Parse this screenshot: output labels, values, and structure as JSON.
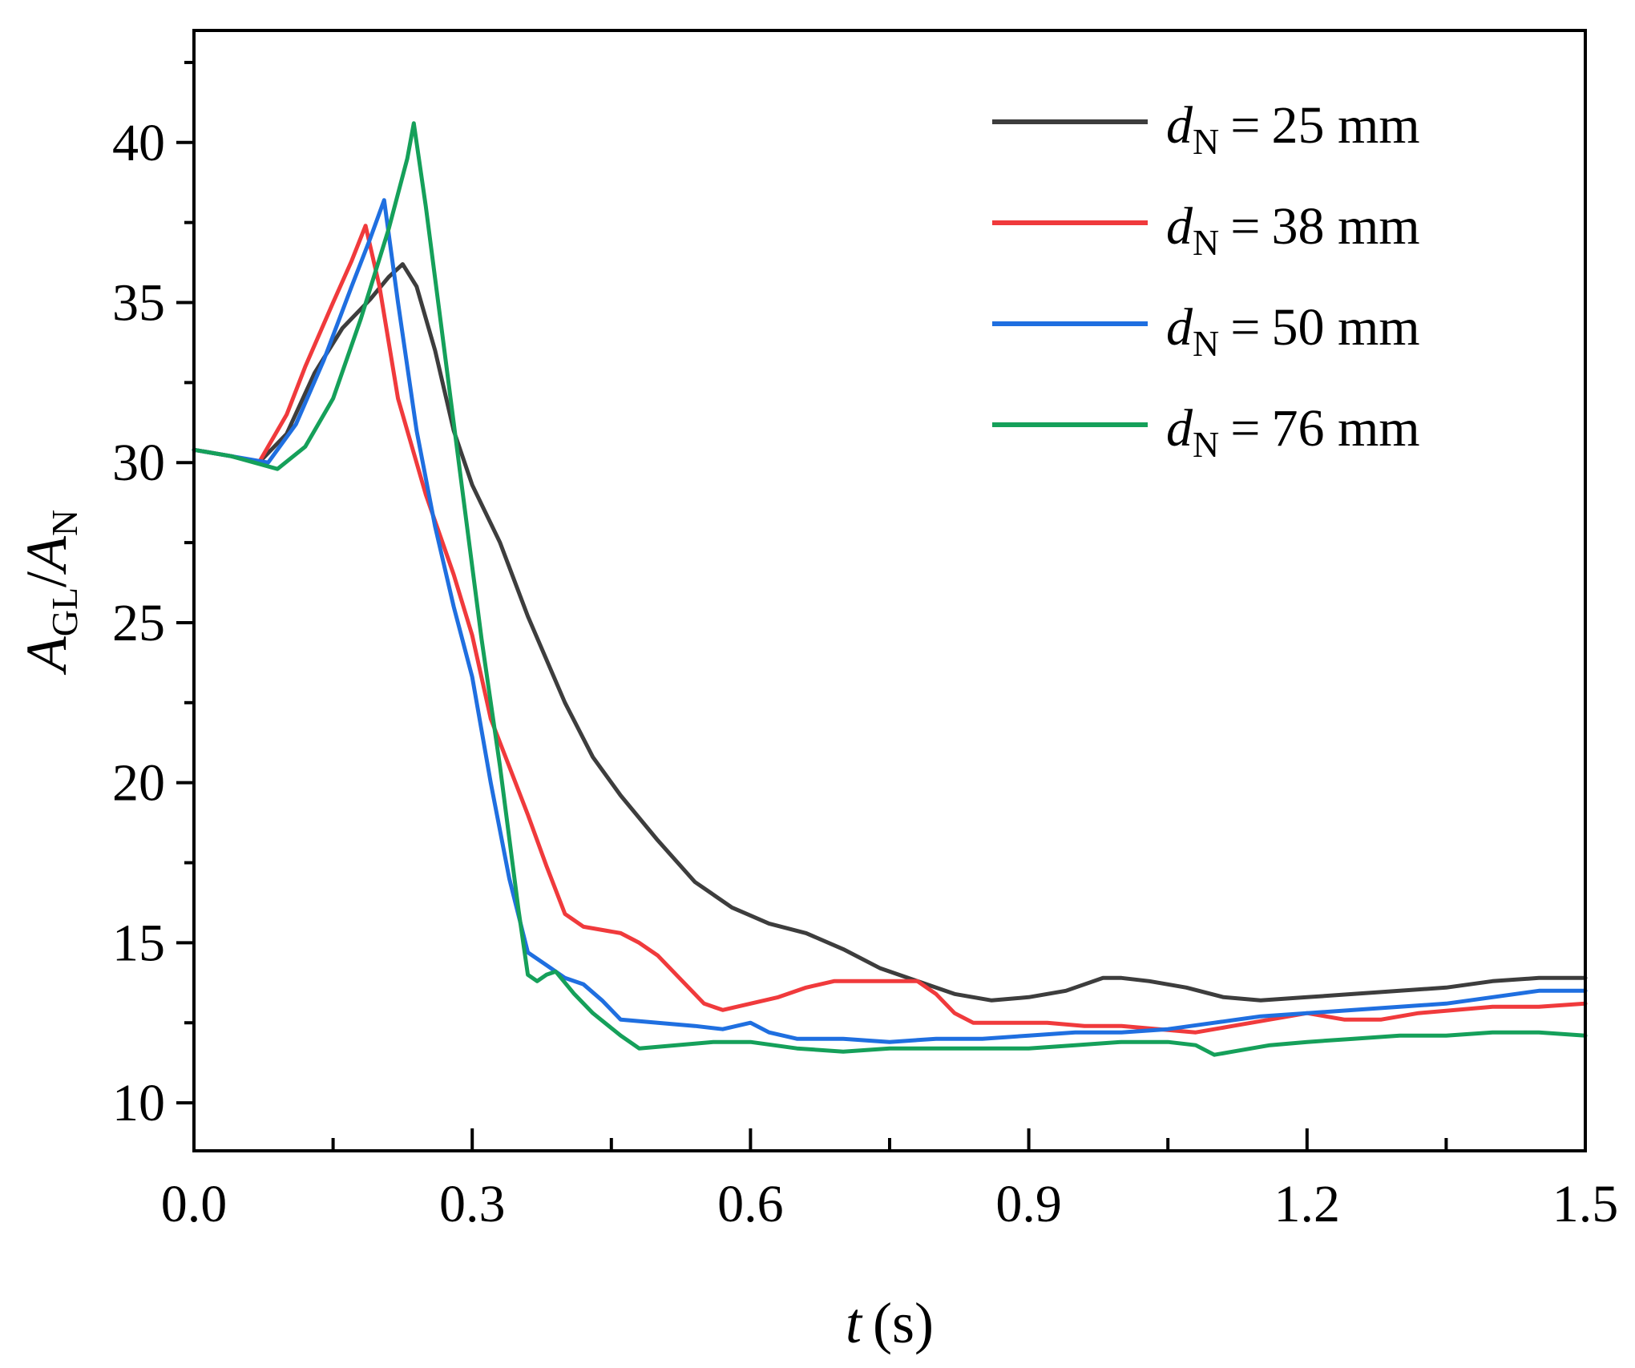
{
  "chart_data": {
    "type": "line",
    "title": "",
    "xlabel": {
      "var": "t",
      "unit": "(s)"
    },
    "ylabel": {
      "num_var": "A",
      "num_sub": "GL",
      "sep": "/",
      "den_var": "A",
      "den_sub": "N"
    },
    "xlim": [
      0,
      1.5
    ],
    "ylim": [
      8.5,
      43.5
    ],
    "x_ticks": [
      {
        "value": 0.0,
        "label": "0.0"
      },
      {
        "value": 0.3,
        "label": "0.3"
      },
      {
        "value": 0.6,
        "label": "0.6"
      },
      {
        "value": 0.9,
        "label": "0.9"
      },
      {
        "value": 1.2,
        "label": "1.2"
      },
      {
        "value": 1.5,
        "label": "1.5"
      }
    ],
    "x_minor_ticks": [
      0.15,
      0.45,
      0.75,
      1.05,
      1.35
    ],
    "y_ticks": [
      {
        "value": 10,
        "label": "10"
      },
      {
        "value": 15,
        "label": "15"
      },
      {
        "value": 20,
        "label": "20"
      },
      {
        "value": 25,
        "label": "25"
      },
      {
        "value": 30,
        "label": "30"
      },
      {
        "value": 35,
        "label": "35"
      },
      {
        "value": 40,
        "label": "40"
      }
    ],
    "y_minor_ticks": [
      12.5,
      17.5,
      22.5,
      27.5,
      32.5,
      37.5,
      42.5
    ],
    "grid": false,
    "legend_position": "top-right",
    "series": [
      {
        "name": "25 mm",
        "legend_var": "d",
        "legend_sub": "N",
        "legend_eq": "=",
        "legend_value": "25 mm",
        "color": "#3d3d3d",
        "points": [
          [
            0,
            30.4
          ],
          [
            0.04,
            30.2
          ],
          [
            0.07,
            30.0
          ],
          [
            0.1,
            30.9
          ],
          [
            0.13,
            32.8
          ],
          [
            0.16,
            34.2
          ],
          [
            0.19,
            35.1
          ],
          [
            0.21,
            35.8
          ],
          [
            0.225,
            36.2
          ],
          [
            0.24,
            35.5
          ],
          [
            0.26,
            33.5
          ],
          [
            0.28,
            31.0
          ],
          [
            0.3,
            29.3
          ],
          [
            0.33,
            27.5
          ],
          [
            0.36,
            25.2
          ],
          [
            0.4,
            22.5
          ],
          [
            0.43,
            20.8
          ],
          [
            0.46,
            19.6
          ],
          [
            0.5,
            18.2
          ],
          [
            0.54,
            16.9
          ],
          [
            0.58,
            16.1
          ],
          [
            0.62,
            15.6
          ],
          [
            0.66,
            15.3
          ],
          [
            0.7,
            14.8
          ],
          [
            0.74,
            14.2
          ],
          [
            0.78,
            13.8
          ],
          [
            0.82,
            13.4
          ],
          [
            0.86,
            13.2
          ],
          [
            0.9,
            13.3
          ],
          [
            0.94,
            13.5
          ],
          [
            0.96,
            13.7
          ],
          [
            0.98,
            13.9
          ],
          [
            1.0,
            13.9
          ],
          [
            1.03,
            13.8
          ],
          [
            1.07,
            13.6
          ],
          [
            1.11,
            13.3
          ],
          [
            1.15,
            13.2
          ],
          [
            1.2,
            13.3
          ],
          [
            1.25,
            13.4
          ],
          [
            1.3,
            13.5
          ],
          [
            1.35,
            13.6
          ],
          [
            1.4,
            13.8
          ],
          [
            1.45,
            13.9
          ],
          [
            1.5,
            13.9
          ]
        ]
      },
      {
        "name": "38 mm",
        "legend_var": "d",
        "legend_sub": "N",
        "legend_eq": "=",
        "legend_value": "38 mm",
        "color": "#f03a3c",
        "points": [
          [
            0,
            30.4
          ],
          [
            0.04,
            30.2
          ],
          [
            0.07,
            30.0
          ],
          [
            0.1,
            31.5
          ],
          [
            0.12,
            33.0
          ],
          [
            0.15,
            35.0
          ],
          [
            0.17,
            36.3
          ],
          [
            0.185,
            37.4
          ],
          [
            0.2,
            35.5
          ],
          [
            0.22,
            32.0
          ],
          [
            0.25,
            29.0
          ],
          [
            0.28,
            26.5
          ],
          [
            0.3,
            24.6
          ],
          [
            0.32,
            22.0
          ],
          [
            0.34,
            20.5
          ],
          [
            0.36,
            19.0
          ],
          [
            0.38,
            17.4
          ],
          [
            0.4,
            15.9
          ],
          [
            0.42,
            15.5
          ],
          [
            0.44,
            15.4
          ],
          [
            0.46,
            15.3
          ],
          [
            0.48,
            15.0
          ],
          [
            0.5,
            14.6
          ],
          [
            0.52,
            14.0
          ],
          [
            0.55,
            13.1
          ],
          [
            0.57,
            12.9
          ],
          [
            0.6,
            13.1
          ],
          [
            0.63,
            13.3
          ],
          [
            0.66,
            13.6
          ],
          [
            0.69,
            13.8
          ],
          [
            0.72,
            13.8
          ],
          [
            0.75,
            13.8
          ],
          [
            0.78,
            13.8
          ],
          [
            0.8,
            13.4
          ],
          [
            0.82,
            12.8
          ],
          [
            0.84,
            12.5
          ],
          [
            0.88,
            12.5
          ],
          [
            0.92,
            12.5
          ],
          [
            0.96,
            12.4
          ],
          [
            1.0,
            12.4
          ],
          [
            1.04,
            12.3
          ],
          [
            1.08,
            12.2
          ],
          [
            1.12,
            12.4
          ],
          [
            1.16,
            12.6
          ],
          [
            1.2,
            12.8
          ],
          [
            1.24,
            12.6
          ],
          [
            1.28,
            12.6
          ],
          [
            1.32,
            12.8
          ],
          [
            1.36,
            12.9
          ],
          [
            1.4,
            13.0
          ],
          [
            1.45,
            13.0
          ],
          [
            1.5,
            13.1
          ]
        ]
      },
      {
        "name": "50 mm",
        "legend_var": "d",
        "legend_sub": "N",
        "legend_eq": "=",
        "legend_value": "50 mm",
        "color": "#1f6fe0",
        "points": [
          [
            0,
            30.4
          ],
          [
            0.04,
            30.2
          ],
          [
            0.08,
            30.0
          ],
          [
            0.11,
            31.2
          ],
          [
            0.14,
            33.2
          ],
          [
            0.17,
            35.5
          ],
          [
            0.19,
            37.0
          ],
          [
            0.205,
            38.2
          ],
          [
            0.22,
            35.0
          ],
          [
            0.24,
            31.0
          ],
          [
            0.26,
            28.0
          ],
          [
            0.28,
            25.5
          ],
          [
            0.3,
            23.3
          ],
          [
            0.32,
            20.0
          ],
          [
            0.34,
            17.0
          ],
          [
            0.36,
            14.7
          ],
          [
            0.38,
            14.3
          ],
          [
            0.4,
            13.9
          ],
          [
            0.42,
            13.7
          ],
          [
            0.44,
            13.2
          ],
          [
            0.46,
            12.6
          ],
          [
            0.5,
            12.5
          ],
          [
            0.54,
            12.4
          ],
          [
            0.57,
            12.3
          ],
          [
            0.6,
            12.5
          ],
          [
            0.62,
            12.2
          ],
          [
            0.65,
            12.0
          ],
          [
            0.7,
            12.0
          ],
          [
            0.75,
            11.9
          ],
          [
            0.8,
            12.0
          ],
          [
            0.85,
            12.0
          ],
          [
            0.9,
            12.1
          ],
          [
            0.95,
            12.2
          ],
          [
            1.0,
            12.2
          ],
          [
            1.05,
            12.3
          ],
          [
            1.1,
            12.5
          ],
          [
            1.15,
            12.7
          ],
          [
            1.2,
            12.8
          ],
          [
            1.25,
            12.9
          ],
          [
            1.3,
            13.0
          ],
          [
            1.35,
            13.1
          ],
          [
            1.4,
            13.3
          ],
          [
            1.45,
            13.5
          ],
          [
            1.5,
            13.5
          ]
        ]
      },
      {
        "name": "76 mm",
        "legend_var": "d",
        "legend_sub": "N",
        "legend_eq": "=",
        "legend_value": "76 mm",
        "color": "#15a05a",
        "points": [
          [
            0,
            30.4
          ],
          [
            0.04,
            30.2
          ],
          [
            0.09,
            29.8
          ],
          [
            0.12,
            30.5
          ],
          [
            0.15,
            32.0
          ],
          [
            0.18,
            34.5
          ],
          [
            0.21,
            37.3
          ],
          [
            0.23,
            39.5
          ],
          [
            0.237,
            40.6
          ],
          [
            0.25,
            38.0
          ],
          [
            0.27,
            33.5
          ],
          [
            0.29,
            29.0
          ],
          [
            0.31,
            24.5
          ],
          [
            0.33,
            20.5
          ],
          [
            0.35,
            16.0
          ],
          [
            0.36,
            14.0
          ],
          [
            0.37,
            13.8
          ],
          [
            0.38,
            14.0
          ],
          [
            0.39,
            14.1
          ],
          [
            0.41,
            13.4
          ],
          [
            0.43,
            12.8
          ],
          [
            0.46,
            12.1
          ],
          [
            0.48,
            11.7
          ],
          [
            0.52,
            11.8
          ],
          [
            0.56,
            11.9
          ],
          [
            0.6,
            11.9
          ],
          [
            0.65,
            11.7
          ],
          [
            0.7,
            11.6
          ],
          [
            0.75,
            11.7
          ],
          [
            0.8,
            11.7
          ],
          [
            0.85,
            11.7
          ],
          [
            0.9,
            11.7
          ],
          [
            0.95,
            11.8
          ],
          [
            1.0,
            11.9
          ],
          [
            1.05,
            11.9
          ],
          [
            1.08,
            11.8
          ],
          [
            1.1,
            11.5
          ],
          [
            1.12,
            11.6
          ],
          [
            1.16,
            11.8
          ],
          [
            1.2,
            11.9
          ],
          [
            1.25,
            12.0
          ],
          [
            1.3,
            12.1
          ],
          [
            1.35,
            12.1
          ],
          [
            1.4,
            12.2
          ],
          [
            1.45,
            12.2
          ],
          [
            1.5,
            12.1
          ]
        ]
      }
    ]
  }
}
